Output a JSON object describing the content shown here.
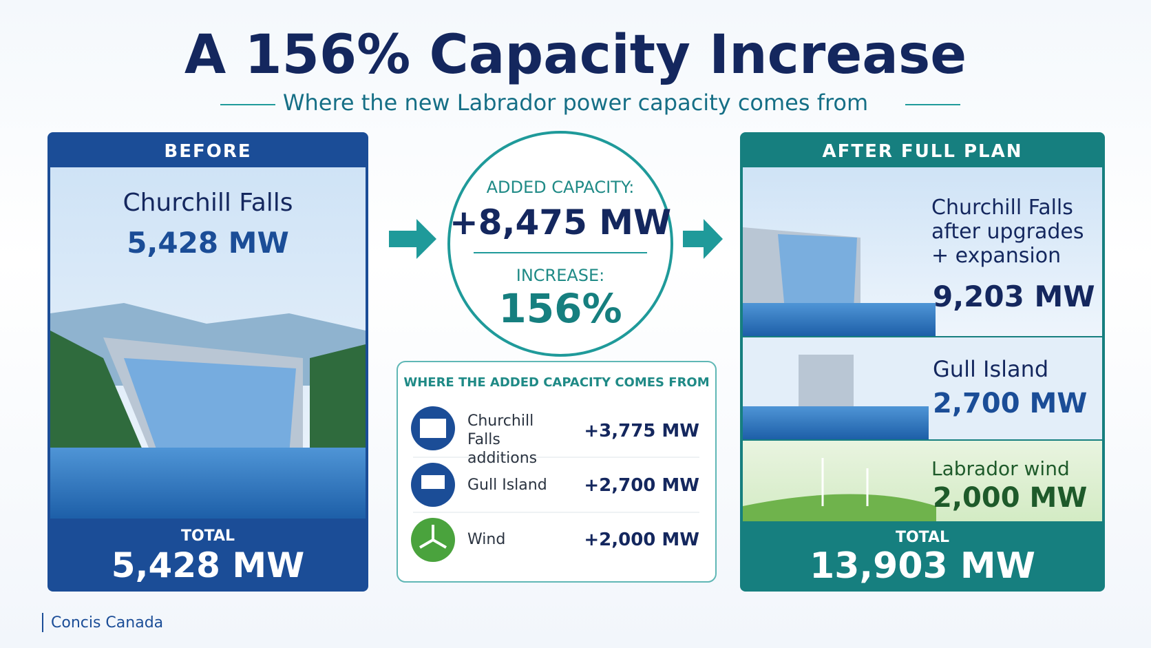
{
  "header": {
    "title": "A 156% Capacity Increase",
    "subtitle": "Where the new Labrador power capacity comes from"
  },
  "before": {
    "heading": "BEFORE",
    "name": "Churchill Falls",
    "value": "5,428 MW",
    "total_label": "TOTAL",
    "total": "5,428 MW"
  },
  "summary": {
    "added_label": "ADDED CAPACITY:",
    "added": "+8,475 MW",
    "increase_label": "INCREASE:",
    "increase": "156%"
  },
  "breakdown": {
    "title": "WHERE THE ADDED CAPACITY COMES FROM",
    "rows": [
      {
        "label": "Churchill Falls additions",
        "value": "+3,775 MW"
      },
      {
        "label": "Gull Island",
        "value": "+2,700 MW"
      },
      {
        "label": "Wind",
        "value": "+2,000 MW"
      }
    ]
  },
  "after": {
    "heading": "AFTER FULL PLAN",
    "items": [
      {
        "name": "Churchill Falls after upgrades + expansion",
        "value": "9,203 MW"
      },
      {
        "name": "Gull Island",
        "value": "2,700 MW"
      },
      {
        "name": "Labrador wind",
        "value": "2,000 MW"
      }
    ],
    "total_label": "TOTAL",
    "total": "13,903 MW"
  },
  "footer": {
    "source": "Concis Canada"
  }
}
